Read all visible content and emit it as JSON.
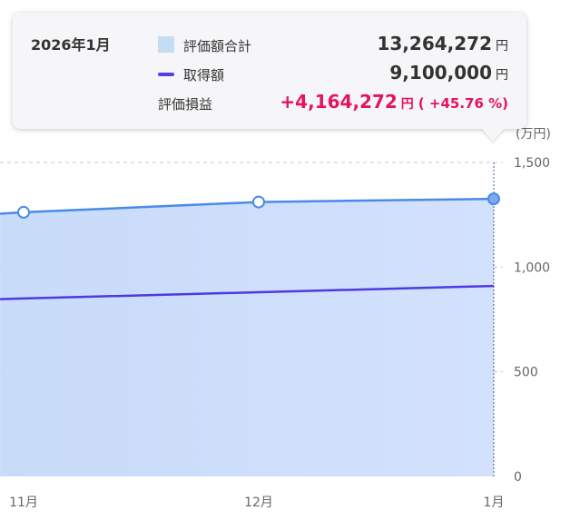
{
  "tooltip": {
    "date": "2026年1月",
    "rows": {
      "total": {
        "label": "評価額合計",
        "value": "13,264,272",
        "unit": "円"
      },
      "acquired": {
        "label": "取得額",
        "value": "9,100,000",
        "unit": "円"
      },
      "gain": {
        "label": "評価損益",
        "value": "+4,164,272",
        "unit": "円",
        "pct": "( +45.76 %)"
      }
    }
  },
  "colors": {
    "area_fill": "#cfe0fb",
    "total_line": "#4a8ae8",
    "acquired_line": "#4e3ae0",
    "gain_text": "#e4145d",
    "grid": "#c8c8c8"
  },
  "chart_data": {
    "type": "area",
    "y_unit_label": "(万円)",
    "ylim": [
      0,
      1500
    ],
    "yticks": [
      0,
      500,
      1000,
      1500
    ],
    "ytick_labels": [
      "0",
      "500",
      "1,000",
      "1,500"
    ],
    "x_labels": [
      "11月",
      "12月",
      "1月"
    ],
    "grid": true,
    "series": [
      {
        "name": "評価額合計",
        "style": "area-line",
        "x": [
          -0.1,
          0,
          1,
          2
        ],
        "values": [
          1255,
          1262,
          1311,
          1326
        ]
      },
      {
        "name": "取得額",
        "style": "line",
        "x": [
          -0.1,
          0,
          1,
          2
        ],
        "values": [
          847,
          850,
          880,
          910
        ]
      }
    ],
    "highlight_index": 2
  }
}
